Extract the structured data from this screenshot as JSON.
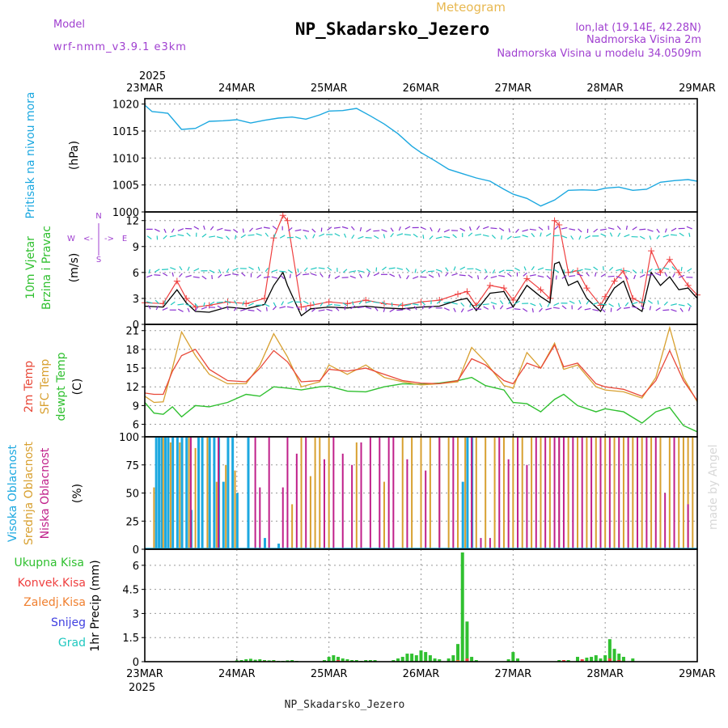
{
  "header": {
    "model_label": "Model",
    "model_name": "wrf-nmm_v3.9.1 e3km",
    "meteogram_label": "Meteogram",
    "station_title": "NP_Skadarsko_Jezero",
    "coords": "lon,lat (19.14E, 42.28N)",
    "elevation": "Nadmorska Visina 2m",
    "model_elevation": "Nadmorska Visina u modelu 34.0509m",
    "footer_station": "NP_Skadarsko_Jezero",
    "watermark": "made by Angel"
  },
  "colors": {
    "pressure": "#1ca8e0",
    "wind_speed": "#000000",
    "wind_gust": "#ef4040",
    "temp_2m": "#e84838",
    "temp_sfc": "#d8a030",
    "dewpoint": "#30c030",
    "cloud_high": "#1ca8e0",
    "cloud_mid": "#d8a030",
    "cloud_low": "#c0208a",
    "precip_total": "#30c030",
    "precip_conv": "#ef4040",
    "precip_frz": "#f08030",
    "precip_snow": "#4040e0",
    "precip_graupel": "#20c8c0",
    "purple_text": "#a040d0"
  },
  "time_axis": {
    "year": "2025",
    "labels": [
      "23MAR",
      "24MAR",
      "25MAR",
      "26MAR",
      "27MAR",
      "28MAR",
      "29MAR"
    ]
  },
  "chart_data": [
    {
      "type": "line",
      "name": "pressure",
      "ylabel_lines": [
        "Pritisak na nivou mora",
        "(hPa)"
      ],
      "ylim": [
        1000,
        1021
      ],
      "yticks": [
        "1000",
        "1005",
        "1010",
        "1015",
        "1020"
      ],
      "x_days": [
        0,
        0.08,
        0.15,
        0.25,
        0.4,
        0.55,
        0.7,
        0.85,
        1.0,
        1.15,
        1.3,
        1.45,
        1.6,
        1.75,
        1.9,
        2.0,
        2.15,
        2.3,
        2.45,
        2.6,
        2.75,
        2.9,
        3.0,
        3.15,
        3.3,
        3.45,
        3.6,
        3.75,
        3.9,
        4.0,
        4.15,
        4.3,
        4.45,
        4.6,
        4.75,
        4.9,
        5.0,
        5.15,
        5.3,
        5.45,
        5.6,
        5.75,
        5.9,
        6.0
      ],
      "values": [
        1019.8,
        1018.6,
        1018.5,
        1018.3,
        1015.3,
        1015.5,
        1016.8,
        1016.9,
        1017.1,
        1016.5,
        1017.0,
        1017.4,
        1017.6,
        1017.2,
        1018.0,
        1018.7,
        1018.8,
        1019.2,
        1017.8,
        1016.3,
        1014.5,
        1012.2,
        1011.0,
        1009.5,
        1007.9,
        1007.1,
        1006.3,
        1005.7,
        1004.2,
        1003.3,
        1002.5,
        1001.1,
        1002.2,
        1004.0,
        1004.1,
        1004.0,
        1004.4,
        1004.6,
        1004.0,
        1004.2,
        1005.5,
        1005.8,
        1006.0,
        1005.7
      ]
    },
    {
      "type": "line",
      "name": "wind",
      "ylabel_lines": [
        "10m Vjetar",
        "Brzina i Pravac",
        "(m/s)"
      ],
      "compass_labels": [
        "N",
        "S",
        "W",
        "E",
        "<-",
        "->"
      ],
      "ylim": [
        0,
        13
      ],
      "yticks": [
        "0",
        "3",
        "6",
        "9",
        "12"
      ],
      "x_days": [
        0,
        0.2,
        0.35,
        0.45,
        0.55,
        0.7,
        0.9,
        1.1,
        1.3,
        1.4,
        1.5,
        1.55,
        1.7,
        1.8,
        2.0,
        2.2,
        2.4,
        2.6,
        2.8,
        3.0,
        3.2,
        3.4,
        3.5,
        3.6,
        3.75,
        3.9,
        4.0,
        4.15,
        4.3,
        4.4,
        4.45,
        4.5,
        4.6,
        4.7,
        4.8,
        4.95,
        5.0,
        5.1,
        5.2,
        5.3,
        5.4,
        5.5,
        5.6,
        5.7,
        5.8,
        5.9,
        6.0
      ],
      "speed": [
        2.1,
        2.0,
        4.0,
        2.5,
        1.5,
        1.4,
        2.0,
        1.8,
        2.3,
        4.5,
        6.0,
        4.5,
        1.0,
        1.8,
        2.0,
        1.9,
        2.1,
        1.9,
        1.8,
        2.0,
        2.1,
        2.8,
        3.0,
        1.6,
        3.6,
        3.8,
        2.0,
        4.5,
        3.2,
        2.5,
        7.0,
        7.2,
        4.5,
        5.0,
        3.0,
        1.5,
        2.5,
        4.2,
        5.0,
        2.2,
        1.5,
        6.0,
        4.5,
        5.5,
        4.0,
        4.2,
        3.0
      ],
      "gust": [
        2.5,
        2.4,
        5.0,
        3.0,
        2.0,
        2.2,
        2.6,
        2.4,
        3.0,
        10.0,
        12.6,
        12.0,
        2.0,
        2.2,
        2.6,
        2.4,
        2.8,
        2.4,
        2.2,
        2.6,
        2.8,
        3.5,
        3.8,
        2.2,
        4.5,
        4.2,
        2.8,
        5.3,
        4.0,
        3.0,
        12.0,
        11.5,
        6.0,
        6.2,
        4.2,
        2.2,
        3.2,
        5.0,
        6.2,
        3.0,
        2.5,
        8.5,
        6.0,
        7.5,
        6.0,
        4.5,
        3.4
      ]
    },
    {
      "type": "line",
      "name": "temperature",
      "ylabel_lines": [
        "2m Temp",
        "SFC Temp",
        "dewpt Temp",
        "(C)"
      ],
      "ylim": [
        4,
        22
      ],
      "yticks": [
        "6",
        "9",
        "12",
        "15",
        "18",
        "21"
      ],
      "x_days": [
        0,
        0.1,
        0.2,
        0.3,
        0.4,
        0.55,
        0.7,
        0.9,
        1.1,
        1.25,
        1.4,
        1.55,
        1.7,
        1.9,
        2.0,
        2.2,
        2.4,
        2.6,
        2.8,
        3.0,
        3.2,
        3.4,
        3.55,
        3.7,
        3.9,
        4.0,
        4.15,
        4.3,
        4.45,
        4.55,
        4.7,
        4.9,
        5.0,
        5.2,
        5.4,
        5.55,
        5.7,
        5.85,
        6.0
      ],
      "t2m": [
        11.0,
        10.8,
        10.8,
        14.5,
        17.0,
        18.0,
        14.8,
        13.0,
        12.8,
        15.0,
        17.8,
        16.0,
        12.8,
        13.0,
        14.8,
        14.5,
        15.0,
        14.0,
        13.0,
        12.6,
        12.5,
        13.0,
        16.5,
        15.5,
        13.0,
        12.5,
        15.8,
        15.0,
        18.7,
        15.2,
        15.8,
        12.5,
        12.0,
        11.6,
        10.5,
        13.0,
        17.8,
        13.0,
        9.8
      ],
      "tsfc": [
        10.5,
        9.5,
        9.6,
        15.0,
        20.8,
        17.0,
        14.0,
        12.5,
        12.5,
        15.5,
        20.5,
        16.8,
        12.0,
        12.8,
        15.5,
        14.0,
        15.5,
        13.5,
        12.8,
        12.3,
        12.5,
        12.8,
        18.3,
        16.0,
        12.2,
        11.8,
        17.5,
        15.0,
        19.0,
        14.8,
        15.5,
        12.0,
        11.5,
        11.2,
        10.2,
        13.5,
        21.5,
        13.5,
        9.6
      ],
      "dewpoint": [
        9.5,
        7.8,
        7.6,
        8.8,
        7.2,
        9.0,
        8.8,
        9.5,
        10.8,
        10.5,
        12.0,
        11.8,
        11.5,
        12.0,
        12.1,
        11.3,
        11.2,
        12.0,
        12.5,
        12.4,
        12.6,
        13.0,
        13.5,
        12.2,
        11.5,
        9.5,
        9.3,
        8.0,
        10.0,
        10.8,
        9.0,
        8.0,
        8.5,
        8.0,
        6.2,
        8.0,
        8.7,
        5.8,
        4.8
      ]
    },
    {
      "type": "bar",
      "name": "cloud_cover",
      "ylabel_lines": [
        "Visoka Oblacnost",
        "Srednja Oblacnost",
        "Niska Oblacnost",
        "(%)"
      ],
      "ylim": [
        0,
        100
      ],
      "yticks": [
        "0",
        "25",
        "50",
        "75",
        "100"
      ],
      "series": [
        {
          "name": "Visoka Oblacnost",
          "x_days": [
            0.12,
            0.15,
            0.18,
            0.22,
            0.25,
            0.3,
            0.35,
            0.4,
            0.45,
            0.5,
            0.58,
            0.62,
            0.7,
            0.75,
            0.8,
            0.85,
            0.9,
            0.95,
            1.0,
            1.12,
            1.3,
            1.45,
            3.45,
            3.5,
            3.55
          ],
          "values": [
            100,
            100,
            100,
            100,
            100,
            100,
            100,
            100,
            100,
            35,
            100,
            100,
            100,
            100,
            100,
            60,
            100,
            100,
            50,
            100,
            10,
            5,
            60,
            100,
            100
          ]
        },
        {
          "name": "Srednja Oblacnost",
          "x_days": [
            0.1,
            0.2,
            0.28,
            0.38,
            0.48,
            0.55,
            0.68,
            0.78,
            0.88,
            0.98,
            1.6,
            1.7,
            1.8,
            1.85,
            1.9,
            2.0,
            2.3,
            2.6,
            2.8,
            2.9,
            3.0,
            3.1,
            3.2,
            3.3,
            3.4,
            3.48,
            3.6,
            3.7,
            3.8,
            3.9,
            4.0,
            4.1,
            4.2,
            4.3,
            4.4,
            4.5,
            4.6,
            4.7,
            4.8,
            4.9,
            5.0,
            5.1,
            5.2,
            5.3,
            5.4,
            5.5,
            5.6,
            5.7,
            5.8,
            5.85,
            5.9,
            5.95
          ],
          "values": [
            55,
            100,
            95,
            95,
            100,
            90,
            100,
            60,
            75,
            70,
            40,
            100,
            65,
            100,
            100,
            100,
            95,
            60,
            100,
            100,
            100,
            100,
            100,
            100,
            100,
            100,
            100,
            100,
            100,
            100,
            100,
            100,
            100,
            100,
            100,
            100,
            100,
            100,
            100,
            100,
            100,
            100,
            100,
            100,
            100,
            100,
            100,
            100,
            100,
            100,
            100,
            100
          ]
        },
        {
          "name": "Niska Oblacnost",
          "x_days": [
            0.5,
            0.8,
            1.2,
            1.25,
            1.35,
            1.5,
            1.55,
            1.65,
            1.75,
            1.95,
            2.05,
            2.15,
            2.25,
            2.35,
            2.45,
            2.55,
            2.65,
            2.7,
            2.85,
            3.05,
            3.2,
            3.35,
            3.55,
            3.65,
            3.75,
            3.85,
            3.95,
            4.05,
            4.15,
            4.25,
            4.35,
            4.45,
            4.5,
            4.55,
            4.65,
            4.75,
            4.85,
            4.95,
            5.05,
            5.15,
            5.25,
            5.35,
            5.45,
            5.55,
            5.65,
            5.75,
            5.9
          ],
          "values": [
            100,
            100,
            100,
            55,
            100,
            55,
            100,
            85,
            100,
            80,
            100,
            85,
            75,
            95,
            100,
            100,
            100,
            100,
            80,
            70,
            100,
            100,
            100,
            10,
            10,
            100,
            80,
            100,
            75,
            100,
            100,
            100,
            100,
            100,
            100,
            100,
            100,
            100,
            100,
            100,
            100,
            100,
            100,
            100,
            50,
            100,
            40
          ]
        }
      ]
    },
    {
      "type": "bar",
      "name": "precipitation",
      "ylabel_lines": [
        "1hr Precip (mm)"
      ],
      "legend": [
        "Ukupna Kisa",
        "Konvek.Kisa",
        "Zaledj.Kisa",
        "Snijeg",
        "Grad"
      ],
      "ylim": [
        0,
        7
      ],
      "yticks": [
        "0",
        "1.5",
        "3",
        "4.5",
        "6"
      ],
      "series": [
        {
          "name": "Ukupna Kisa",
          "x_days": [
            1.0,
            1.05,
            1.1,
            1.15,
            1.2,
            1.25,
            1.3,
            1.35,
            1.4,
            1.45,
            1.5,
            1.55,
            1.6,
            1.65,
            1.95,
            2.0,
            2.05,
            2.1,
            2.15,
            2.2,
            2.25,
            2.3,
            2.35,
            2.4,
            2.45,
            2.5,
            2.7,
            2.75,
            2.8,
            2.85,
            2.9,
            2.95,
            3.0,
            3.05,
            3.1,
            3.15,
            3.2,
            3.3,
            3.35,
            3.4,
            3.45,
            3.5,
            3.55,
            3.6,
            3.95,
            4.0,
            4.05,
            4.5,
            4.6,
            4.7,
            4.8,
            4.85,
            4.9,
            4.95,
            5.0,
            5.05,
            5.1,
            5.15,
            5.2,
            5.3
          ],
          "values": [
            0.08,
            0.1,
            0.15,
            0.18,
            0.12,
            0.15,
            0.1,
            0.08,
            0.1,
            0.05,
            0.05,
            0.08,
            0.1,
            0.05,
            0.1,
            0.3,
            0.4,
            0.3,
            0.2,
            0.15,
            0.1,
            0.1,
            0.05,
            0.1,
            0.1,
            0.1,
            0.1,
            0.2,
            0.3,
            0.5,
            0.5,
            0.4,
            0.7,
            0.6,
            0.4,
            0.2,
            0.15,
            0.2,
            0.4,
            1.1,
            6.8,
            2.5,
            0.3,
            0.1,
            0.15,
            0.6,
            0.2,
            0.1,
            0.1,
            0.3,
            0.25,
            0.3,
            0.4,
            0.2,
            0.4,
            1.4,
            0.8,
            0.5,
            0.3,
            0.2
          ]
        },
        {
          "name": "Konvek.Kisa",
          "x_days": [
            1.3,
            2.1,
            3.05,
            3.5,
            4.55,
            4.75,
            5.05,
            5.15
          ],
          "values": [
            0.05,
            0.1,
            0.05,
            0.2,
            0.1,
            0.15,
            0.2,
            0.1
          ]
        },
        {
          "name": "Zaledj.Kisa",
          "x_days": [
            1.4,
            2.2,
            3.4
          ],
          "values": [
            0.05,
            0.05,
            0.1
          ]
        }
      ]
    }
  ]
}
